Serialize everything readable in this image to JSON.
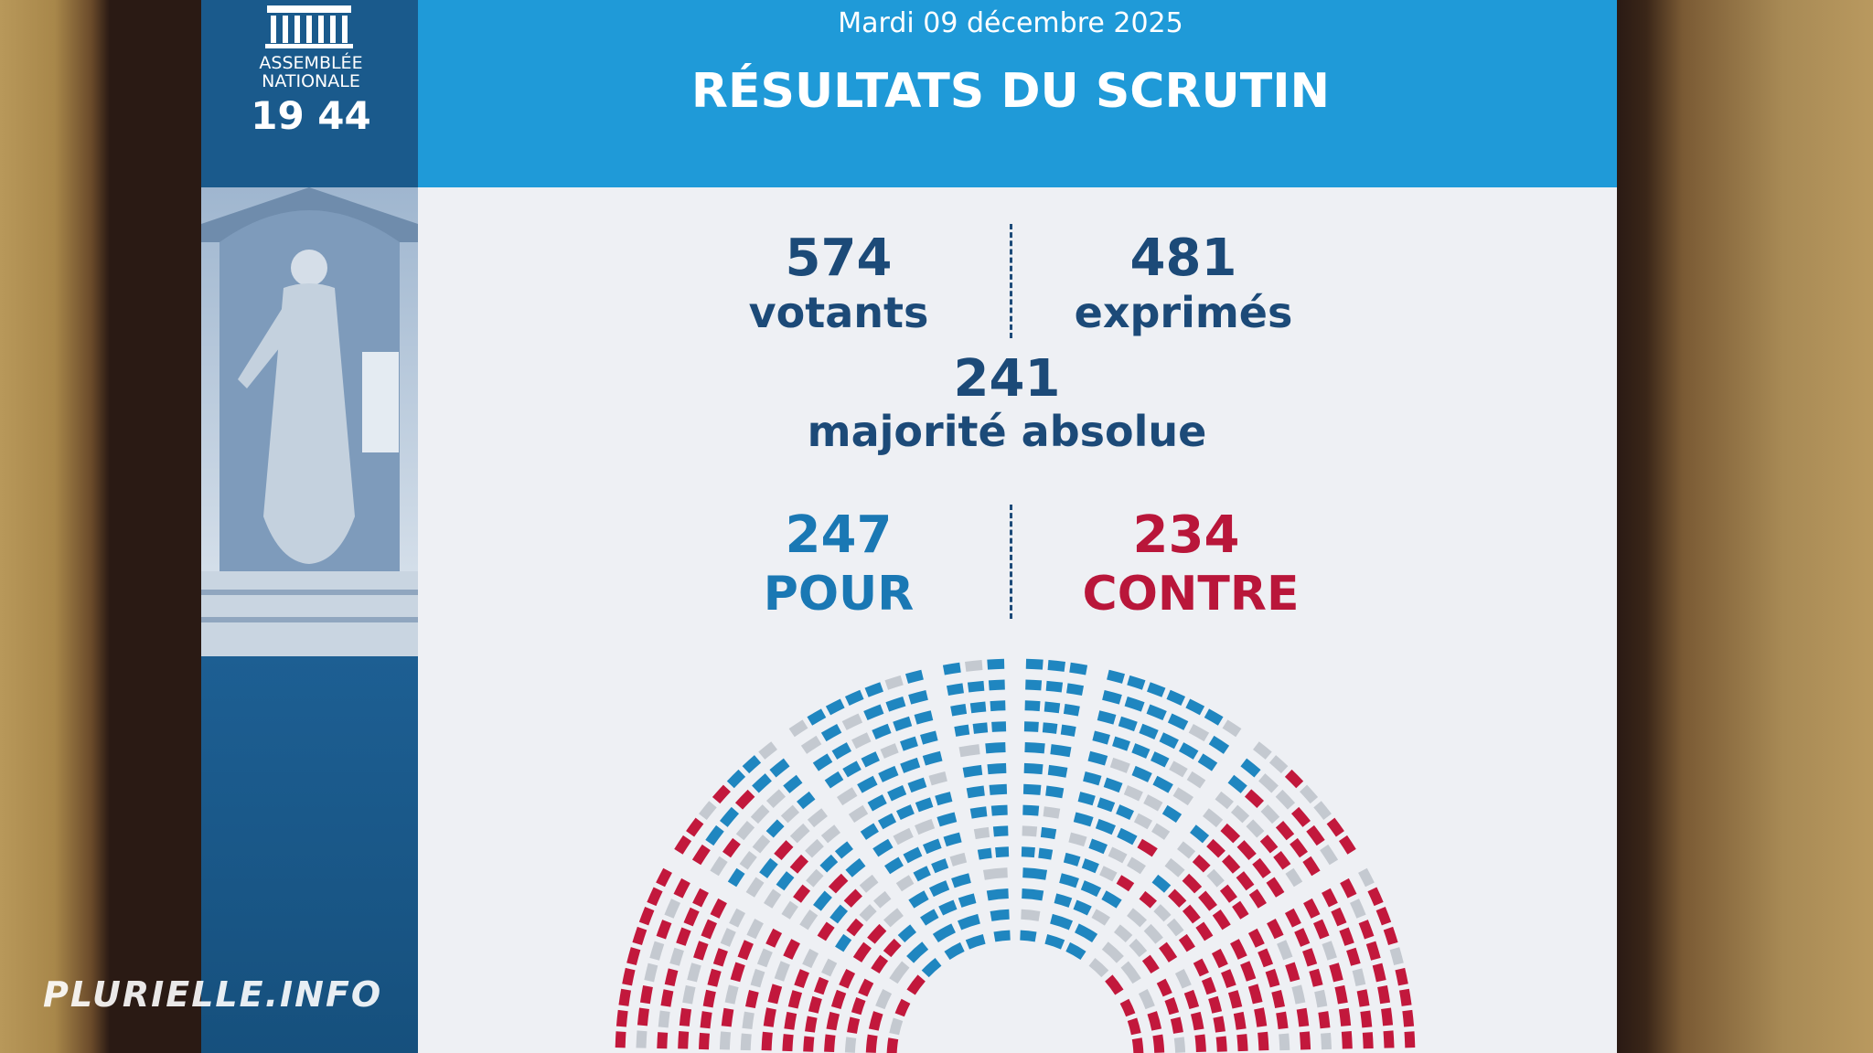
{
  "logo": {
    "line1": "ASSEMBLÉE",
    "line2": "NATIONALE",
    "year": "19 44"
  },
  "header": {
    "date": "Mardi 09 décembre 2025",
    "title": "RÉSULTATS DU SCRUTIN"
  },
  "stats": {
    "votants": {
      "value": "574",
      "label": "votants"
    },
    "exprimes": {
      "value": "481",
      "label": "exprimés"
    },
    "majorite": {
      "value": "241",
      "label": "majorité absolue"
    },
    "pour": {
      "value": "247",
      "label": "POUR"
    },
    "contre": {
      "value": "234",
      "label": "CONTRE"
    }
  },
  "watermark": "PLURIELLE.INFO"
}
